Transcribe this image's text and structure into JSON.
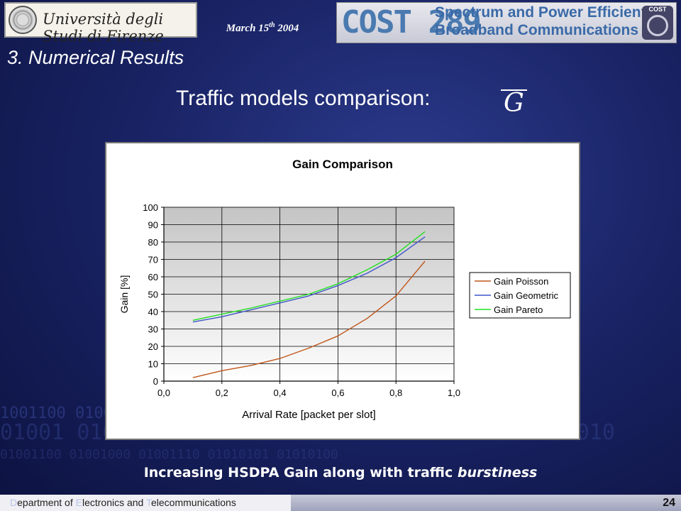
{
  "header": {
    "university": "Università degli Studi di Firenze",
    "date_main": "March 15",
    "date_sup": "th",
    "date_year": "2004",
    "cost_number": "COST 289",
    "cost_line1": "Spectrum and Power Efficient",
    "cost_line2": "Broadband Communications",
    "cost_badge": "COST"
  },
  "section_title": "3. Numerical Results",
  "slide_title": "Traffic models comparison:",
  "slide_symbol": "G",
  "caption": {
    "prefix": "Increasing HSDPA Gain along with traffic ",
    "emphasis": "burstiness"
  },
  "footer": {
    "dept_parts": [
      "D",
      "epartment of ",
      "E",
      "lectronics and ",
      "T",
      "elecommunications"
    ],
    "page": "24"
  },
  "colors": {
    "poisson": "#c0561a",
    "geometric": "#3f55c8",
    "pareto": "#22e022"
  },
  "chart_data": {
    "type": "line",
    "title": "Gain Comparison",
    "xlabel": "Arrival Rate [packet per slot]",
    "ylabel": "Gain [%]",
    "xlim": [
      0.0,
      1.0
    ],
    "ylim": [
      0,
      100
    ],
    "xticks": [
      "0,0",
      "0,2",
      "0,4",
      "0,6",
      "0,8",
      "1,0"
    ],
    "yticks": [
      "0",
      "10",
      "20",
      "30",
      "40",
      "50",
      "60",
      "70",
      "80",
      "90",
      "100"
    ],
    "grid": true,
    "legend_position": "right",
    "x": [
      0.1,
      0.2,
      0.3,
      0.4,
      0.5,
      0.6,
      0.7,
      0.8,
      0.9
    ],
    "series": [
      {
        "name": "Gain Poisson",
        "values": [
          2,
          6,
          9,
          13,
          19,
          26,
          36,
          49,
          69
        ]
      },
      {
        "name": "Gain Geometric",
        "values": [
          34,
          37,
          41,
          45,
          49,
          55,
          62,
          71,
          83
        ]
      },
      {
        "name": "Gain Pareto",
        "values": [
          35,
          38.5,
          42,
          46,
          50,
          56,
          64,
          73,
          86
        ]
      }
    ]
  }
}
